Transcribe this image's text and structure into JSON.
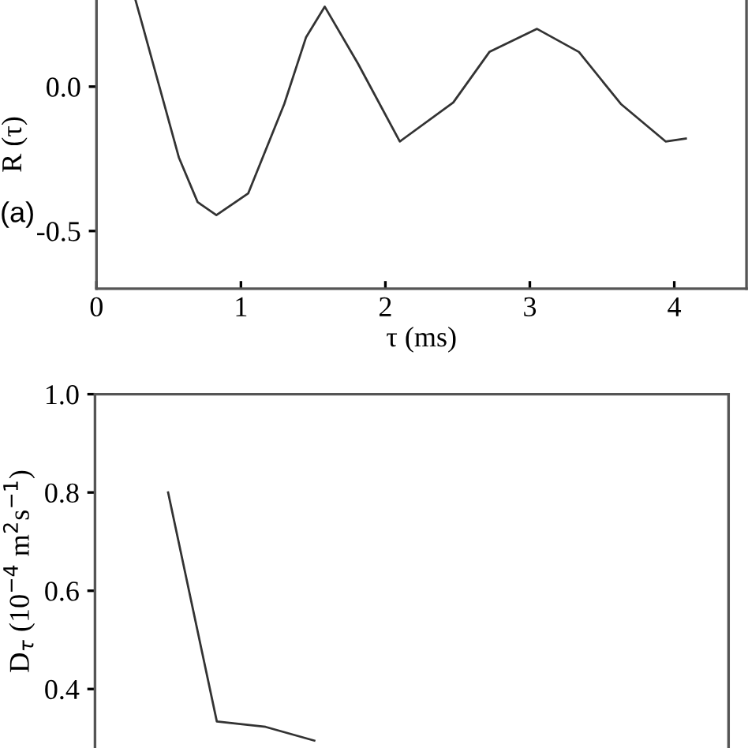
{
  "chart_data": [
    {
      "type": "line",
      "xlabel": "τ (ms)",
      "ylabel": "R (τ)",
      "annotations": [
        "(a)"
      ],
      "series": [
        {
          "color": "#333333",
          "x": [
            0.27,
            0.32,
            0.43,
            0.57,
            0.7,
            0.83,
            1.05,
            1.3,
            1.45,
            1.58,
            1.81,
            2.1,
            2.47,
            2.72,
            3.05,
            3.34,
            3.63,
            3.94,
            4.08
          ],
          "values": [
            0.3,
            0.21,
            0.01,
            -0.245,
            -0.4,
            -0.445,
            -0.37,
            -0.06,
            0.17,
            0.277,
            0.08,
            -0.19,
            -0.055,
            0.12,
            0.2,
            0.12,
            -0.06,
            -0.19,
            -0.18
          ]
        }
      ],
      "xlim": [
        0,
        4.5
      ],
      "xticks": [
        0,
        1,
        2,
        3,
        4
      ],
      "ylim": [
        -0.7,
        0.3
      ],
      "yticks": [
        {
          "value": 0,
          "label": "0.0"
        },
        -0.5
      ],
      "grid": false
    },
    {
      "type": "line",
      "ylabel": "D$_{τ}$ (10$^{−4}$ m$^{2}$s$^{−1}$)",
      "tick_labels": "y",
      "categories": [
        null,
        null,
        null,
        null,
        null,
        null,
        null,
        null,
        null,
        null,
        null,
        null,
        null
      ],
      "series": [
        {
          "color": "#333333",
          "values": [
            null,
            0.8,
            0.334,
            0.323,
            0.295,
            null,
            null,
            null,
            null,
            null,
            null,
            null,
            null
          ]
        }
      ],
      "ylim": [
        0.28,
        1.0
      ],
      "yticks": [
        {
          "value": 1,
          "label": "1.0"
        },
        0.8,
        0.6,
        0.4
      ],
      "grid": false
    }
  ]
}
